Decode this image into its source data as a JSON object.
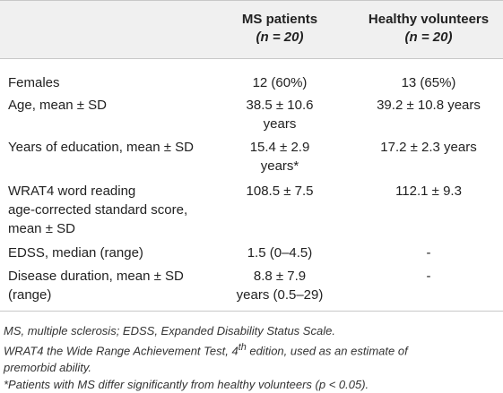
{
  "header": {
    "col1_title": "MS patients",
    "col1_n": "(n = 20)",
    "col2_title": "Healthy volunteers",
    "col2_n": "(n = 20)"
  },
  "rows": [
    {
      "label": "Females",
      "ms": "12 (60%)",
      "hv": "13 (65%)"
    },
    {
      "label": "Age, mean ± SD",
      "ms_line1": "38.5 ± 10.6",
      "ms_line2": "years",
      "hv": "39.2 ± 10.8 years"
    },
    {
      "label": "Years of education, mean ± SD",
      "ms_line1": "15.4 ± 2.9",
      "ms_line2": "years*",
      "hv": "17.2 ± 2.3 years"
    },
    {
      "label_line1": "WRAT4 word reading",
      "label_line2": "age-corrected standard score,",
      "label_line3": "mean ± SD",
      "ms": "108.5 ± 7.5",
      "hv": "112.1 ± 9.3"
    },
    {
      "label": "EDSS, median (range)",
      "ms": "1.5 (0–4.5)",
      "hv": "-"
    },
    {
      "label_line1": "Disease duration, mean ± SD",
      "label_line2": "(range)",
      "ms_line1": "8.8 ± 7.9",
      "ms_line2": "years (0.5–29)",
      "hv": "-"
    }
  ],
  "footnotes": {
    "abbrev": "MS, multiple sclerosis; EDSS, Expanded Disability Status Scale.",
    "wrat_prefix": "WRAT4 the Wide Range Achievement Test, 4",
    "wrat_sup": "th",
    "wrat_suffix": " edition, used as an estimate of",
    "wrat_line2": "premorbid ability.",
    "significance": "*Patients with MS differ significantly from healthy volunteers (p < 0.05)."
  }
}
